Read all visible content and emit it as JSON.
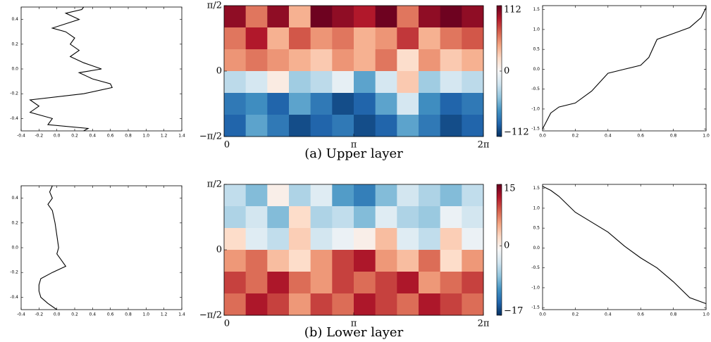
{
  "chart_data": [
    {
      "type": "line",
      "color": "#000000",
      "x": [
        0.3,
        0.28,
        0.1,
        0.25,
        -0.05,
        0.1,
        0.2,
        0.15,
        0.25,
        0.15,
        0.3,
        0.5,
        0.25,
        0.4,
        0.6,
        0.62,
        0.3,
        -0.3,
        -0.2,
        -0.3,
        -0.05,
        -0.1,
        0.35,
        0.3
      ],
      "y": [
        0.5,
        0.48,
        0.45,
        0.4,
        0.33,
        0.3,
        0.25,
        0.2,
        0.15,
        0.1,
        0.05,
        0.0,
        -0.03,
        -0.08,
        -0.12,
        -0.15,
        -0.2,
        -0.25,
        -0.3,
        -0.35,
        -0.4,
        -0.45,
        -0.48,
        -0.5
      ],
      "xlim": [
        -0.4,
        1.4
      ],
      "ylim": [
        -0.5,
        0.5
      ],
      "xticks": [
        -0.4,
        -0.2,
        {
          "value": 0,
          "label": "0.0"
        },
        0.2,
        0.4,
        0.6,
        0.8,
        {
          "value": 1,
          "label": "1.0"
        },
        1.2,
        1.4
      ],
      "yticks": [
        -0.4,
        -0.2,
        {
          "value": 0,
          "label": "0.0"
        },
        0.2,
        0.4
      ]
    },
    {
      "type": "heatmap",
      "title": "(a) Upper layer",
      "z": [
        [
          100,
          60,
          100,
          40,
          110,
          100,
          90,
          110,
          60,
          100,
          110,
          100
        ],
        [
          60,
          90,
          40,
          70,
          50,
          60,
          40,
          50,
          80,
          40,
          60,
          70
        ],
        [
          50,
          60,
          50,
          40,
          30,
          50,
          40,
          60,
          20,
          50,
          30,
          40
        ],
        [
          -30,
          -20,
          10,
          -40,
          -30,
          -10,
          -60,
          -20,
          30,
          -40,
          -20,
          -30
        ],
        [
          -80,
          -70,
          -90,
          -60,
          -80,
          -100,
          -90,
          -60,
          -20,
          -70,
          -90,
          -80
        ],
        [
          -90,
          -60,
          -80,
          -100,
          -90,
          -80,
          -100,
          -90,
          -60,
          -80,
          -100,
          -90
        ]
      ],
      "xlim": [
        0,
        6.2832
      ],
      "ylim": [
        -1.5708,
        1.5708
      ],
      "xticks": [
        0,
        {
          "value": 3.1416,
          "label": "π"
        },
        {
          "value": 6.2832,
          "label": "2π"
        }
      ],
      "yticks": [
        {
          "value": -1.5708,
          "label": "−π/2"
        },
        0,
        {
          "value": 1.5708,
          "label": "π/2"
        }
      ],
      "clim": [
        -112,
        112
      ],
      "cticks": [
        {
          "value": -112,
          "label": "−112"
        },
        0,
        112
      ]
    },
    {
      "type": "line",
      "color": "#000000",
      "x": [
        0,
        0.05,
        0.1,
        0.2,
        0.3,
        0.4,
        0.5,
        0.6,
        0.65,
        0.7,
        0.8,
        0.9,
        0.97,
        1.0
      ],
      "y": [
        -1.5,
        -1.1,
        -0.95,
        -0.85,
        -0.55,
        -0.1,
        0.0,
        0.1,
        0.3,
        0.75,
        0.9,
        1.05,
        1.3,
        1.55
      ],
      "xlim": [
        0,
        1
      ],
      "ylim": [
        -1.55,
        1.6
      ],
      "xticks": [
        {
          "value": 0,
          "label": "0.0"
        },
        0.2,
        0.4,
        0.6,
        0.8,
        {
          "value": 1,
          "label": "1.0"
        }
      ],
      "yticks": [
        -1.5,
        {
          "value": -1,
          "label": "-1.0"
        },
        -0.5,
        {
          "value": 0,
          "label": "0.0"
        },
        0.5,
        {
          "value": 1,
          "label": "1.0"
        },
        1.5
      ]
    },
    {
      "type": "line",
      "color": "#000000",
      "x": [
        -0.05,
        -0.08,
        -0.05,
        -0.1,
        -0.05,
        -0.02,
        0.0,
        0.02,
        0.0,
        0.05,
        0.1,
        -0.05,
        -0.18,
        -0.2,
        -0.2,
        -0.18,
        -0.1,
        0.0
      ],
      "y": [
        0.5,
        0.45,
        0.4,
        0.35,
        0.3,
        0.2,
        0.1,
        0.0,
        -0.05,
        -0.1,
        -0.15,
        -0.2,
        -0.25,
        -0.3,
        -0.35,
        -0.4,
        -0.45,
        -0.5
      ],
      "xlim": [
        -0.4,
        1.4
      ],
      "ylim": [
        -0.5,
        0.5
      ],
      "xticks": [
        -0.4,
        -0.2,
        {
          "value": 0,
          "label": "0.0"
        },
        0.2,
        0.4,
        0.6,
        0.8,
        {
          "value": 1,
          "label": "1.0"
        },
        1.2,
        1.4
      ],
      "yticks": [
        -0.4,
        -0.2,
        {
          "value": 0,
          "label": "0.0"
        },
        0.2,
        0.4
      ]
    },
    {
      "type": "heatmap",
      "title": "(b) Lower layer",
      "z": [
        [
          -5,
          -8,
          0,
          -6,
          -3,
          -10,
          -12,
          -8,
          -4,
          -6,
          -8,
          -5
        ],
        [
          -6,
          -4,
          -8,
          2,
          -6,
          -5,
          -8,
          -3,
          -6,
          -7,
          -2,
          -4
        ],
        [
          2,
          -3,
          -5,
          3,
          -4,
          -2,
          0,
          4,
          -3,
          -5,
          3,
          -2
        ],
        [
          6,
          8,
          4,
          2,
          6,
          10,
          12,
          6,
          4,
          8,
          2,
          6
        ],
        [
          10,
          8,
          12,
          8,
          6,
          10,
          8,
          10,
          12,
          6,
          8,
          10
        ],
        [
          8,
          12,
          10,
          6,
          10,
          8,
          12,
          10,
          8,
          12,
          10,
          8
        ]
      ],
      "xlim": [
        0,
        6.2832
      ],
      "ylim": [
        -1.5708,
        1.5708
      ],
      "xticks": [
        0,
        {
          "value": 3.1416,
          "label": "π"
        },
        {
          "value": 6.2832,
          "label": "2π"
        }
      ],
      "yticks": [
        {
          "value": -1.5708,
          "label": "−π/2"
        },
        0,
        {
          "value": 1.5708,
          "label": "π/2"
        }
      ],
      "clim": [
        -17,
        15
      ],
      "cticks": [
        {
          "value": -17,
          "label": "−17"
        },
        0,
        15
      ]
    },
    {
      "type": "line",
      "color": "#000000",
      "x": [
        0,
        0.05,
        0.1,
        0.2,
        0.3,
        0.4,
        0.5,
        0.6,
        0.7,
        0.8,
        0.9,
        1.0
      ],
      "y": [
        1.55,
        1.45,
        1.3,
        0.9,
        0.65,
        0.4,
        0.05,
        -0.25,
        -0.5,
        -0.85,
        -1.25,
        -1.4
      ],
      "xlim": [
        0,
        1
      ],
      "ylim": [
        -1.55,
        1.6
      ],
      "xticks": [
        {
          "value": 0,
          "label": "0.0"
        },
        0.2,
        0.4,
        0.6,
        0.8,
        {
          "value": 1,
          "label": "1.0"
        }
      ],
      "yticks": [
        -1.5,
        {
          "value": -1,
          "label": "-1.0"
        },
        -0.5,
        {
          "value": 0,
          "label": "0.0"
        },
        0.5,
        {
          "value": 1,
          "label": "1.0"
        },
        1.5
      ]
    }
  ]
}
